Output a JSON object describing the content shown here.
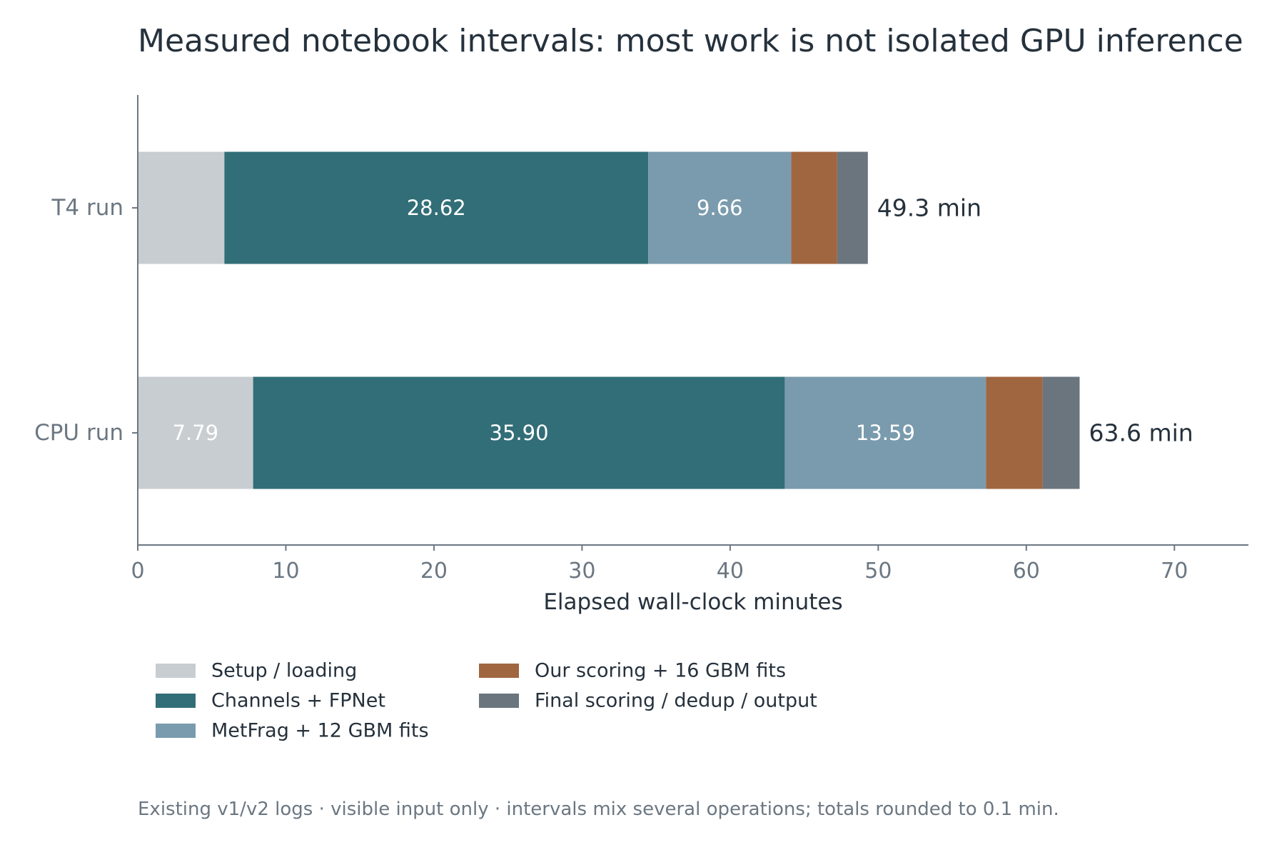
{
  "chart_data": {
    "type": "bar",
    "orientation": "horizontal",
    "stacked": true,
    "title": "Measured notebook intervals: most work is not isolated GPU inference",
    "xlabel": "Elapsed wall-clock minutes",
    "ylabel": "",
    "xlim": [
      0,
      75
    ],
    "xticks": [
      0,
      10,
      20,
      30,
      40,
      50,
      60,
      70
    ],
    "grid": false,
    "legend_position": "bottom-left",
    "categories": [
      "T4 run",
      "CPU run"
    ],
    "series": [
      {
        "name": "Setup / loading",
        "color": "#c8cdd1",
        "values": [
          5.85,
          7.79
        ],
        "labels": [
          "",
          "7.79"
        ]
      },
      {
        "name": "Channels + FPNet",
        "color": "#326e77",
        "values": [
          28.62,
          35.9
        ],
        "labels": [
          "28.62",
          "35.90"
        ]
      },
      {
        "name": "MetFrag + 12 GBM fits",
        "color": "#7a9bad",
        "values": [
          9.66,
          13.59
        ],
        "labels": [
          "9.66",
          "13.59"
        ]
      },
      {
        "name": "Our scoring + 16 GBM fits",
        "color": "#a06640",
        "values": [
          3.1,
          3.82
        ],
        "labels": [
          "",
          ""
        ]
      },
      {
        "name": "Final scoring / dedup / output",
        "color": "#6a757e",
        "values": [
          2.07,
          2.5
        ],
        "labels": [
          "",
          ""
        ]
      }
    ],
    "totals": [
      "49.3 min",
      "63.6 min"
    ],
    "legend_order": [
      0,
      3,
      1,
      4,
      2
    ],
    "footnote": "Existing v1/v2 logs · visible input only · intervals mix several operations; totals rounded to 0.1 min."
  }
}
